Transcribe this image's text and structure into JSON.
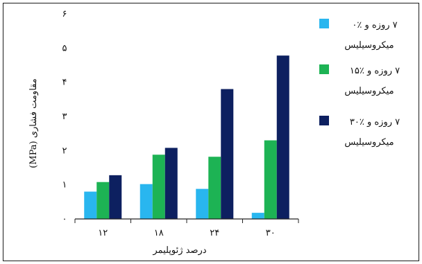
{
  "chart_data": {
    "type": "bar",
    "xlabel": "درصد ژئوپلیمر",
    "ylabel": "مقاومت فشاری (MPa)",
    "categories": [
      "۱۲",
      "۱۸",
      "۲۴",
      "۳۰"
    ],
    "ylim": [
      0,
      6
    ],
    "yticks": [
      {
        "value": 0,
        "label": "۰"
      },
      {
        "value": 1,
        "label": "۱"
      },
      {
        "value": 2,
        "label": "۲"
      },
      {
        "value": 3,
        "label": "۳"
      },
      {
        "value": 4,
        "label": "۴"
      },
      {
        "value": 5,
        "label": "۵"
      },
      {
        "value": 6,
        "label": "۶"
      }
    ],
    "grid": false,
    "legend_position": "right",
    "series": [
      {
        "name_line1": "۷ روزه و ٪۰",
        "name_line2": "میکروسیلیس",
        "color": "#29b6ef",
        "values": [
          0.8,
          1.02,
          0.88,
          0.18
        ]
      },
      {
        "name_line1": "۷ روزه و ٪۱۵",
        "name_line2": "میکروسیلیس",
        "color": "#1db354",
        "values": [
          1.08,
          1.88,
          1.82,
          2.3
        ]
      },
      {
        "name_line1": "۷ روزه و ٪۳۰",
        "name_line2": "میکروسیلیس",
        "color": "#0d2060",
        "values": [
          1.28,
          2.08,
          3.8,
          4.78
        ]
      }
    ]
  }
}
